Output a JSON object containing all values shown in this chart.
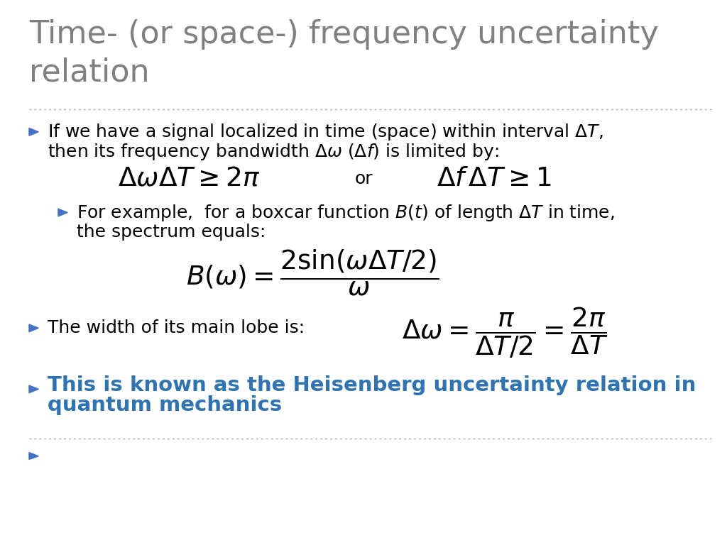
{
  "title_line1": "Time- (or space-) frequency uncertainty",
  "title_line2": "relation",
  "title_color": "#808080",
  "title_fontsize": 32,
  "background_color": "#ffffff",
  "bullet_color": "#4472C4",
  "text_color": "#000000",
  "blue_text_color": "#2E74B5",
  "separator_color": "#AAAAAA",
  "bullet1_line1": "If we have a signal localized in time (space) within interval $\\Delta T$,",
  "bullet1_line2": "then its frequency bandwidth $\\Delta\\omega$ ($\\Delta f$) is limited by:",
  "formula1a": "$\\Delta\\omega\\Delta T \\geq 2\\pi$",
  "formula1b": "or",
  "formula1c": "$\\Delta f\\,\\Delta T \\geq 1$",
  "bullet2_line1": "For example,  for a boxcar function $B(t)$ of length $\\Delta T$ in time,",
  "bullet2_line2": "the spectrum equals:",
  "formula2": "$B(\\omega) = \\dfrac{2\\sin(\\omega\\Delta T/2)}{\\omega}$",
  "bullet3_text": "The width of its main lobe is:",
  "formula3": "$\\Delta\\omega = \\dfrac{\\pi}{\\Delta T/2} = \\dfrac{2\\pi}{\\Delta T}$",
  "bullet4_line1": "This is known as the Heisenberg uncertainty relation in",
  "bullet4_line2": "quantum mechanics"
}
